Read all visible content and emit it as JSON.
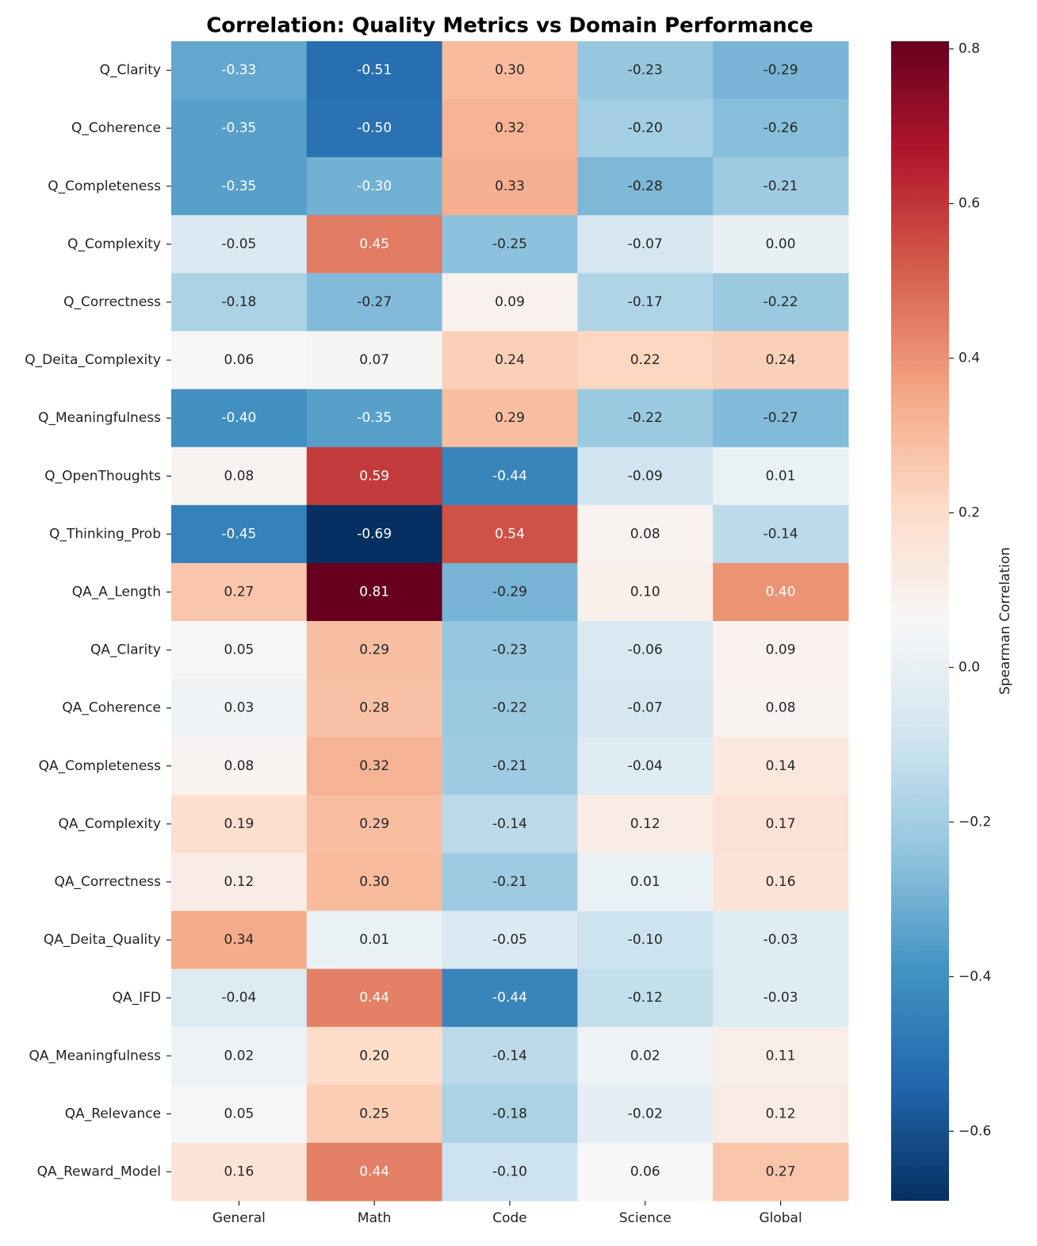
{
  "chart_data": {
    "type": "heatmap",
    "title": "Correlation: Quality Metrics vs Domain Performance",
    "categories": [
      "General",
      "Math",
      "Code",
      "Science",
      "Global"
    ],
    "rows": [
      "Q_Clarity",
      "Q_Coherence",
      "Q_Completeness",
      "Q_Complexity",
      "Q_Correctness",
      "Q_Deita_Complexity",
      "Q_Meaningfulness",
      "Q_OpenThoughts",
      "Q_Thinking_Prob",
      "QA_A_Length",
      "QA_Clarity",
      "QA_Coherence",
      "QA_Completeness",
      "QA_Complexity",
      "QA_Correctness",
      "QA_Deita_Quality",
      "QA_IFD",
      "QA_Meaningfulness",
      "QA_Relevance",
      "QA_Reward_Model"
    ],
    "values": [
      [
        -0.33,
        -0.51,
        0.3,
        -0.23,
        -0.29
      ],
      [
        -0.35,
        -0.5,
        0.32,
        -0.2,
        -0.26
      ],
      [
        -0.35,
        -0.3,
        0.33,
        -0.28,
        -0.21
      ],
      [
        -0.05,
        0.45,
        -0.25,
        -0.07,
        0.0
      ],
      [
        -0.18,
        -0.27,
        0.09,
        -0.17,
        -0.22
      ],
      [
        0.06,
        0.07,
        0.24,
        0.22,
        0.24
      ],
      [
        -0.4,
        -0.35,
        0.29,
        -0.22,
        -0.27
      ],
      [
        0.08,
        0.59,
        -0.44,
        -0.09,
        0.01
      ],
      [
        -0.45,
        -0.69,
        0.54,
        0.08,
        -0.14
      ],
      [
        0.27,
        0.81,
        -0.29,
        0.1,
        0.4
      ],
      [
        0.05,
        0.29,
        -0.23,
        -0.06,
        0.09
      ],
      [
        0.03,
        0.28,
        -0.22,
        -0.07,
        0.08
      ],
      [
        0.08,
        0.32,
        -0.21,
        -0.04,
        0.14
      ],
      [
        0.19,
        0.29,
        -0.14,
        0.12,
        0.17
      ],
      [
        0.12,
        0.3,
        -0.21,
        0.01,
        0.16
      ],
      [
        0.34,
        0.01,
        -0.05,
        -0.1,
        -0.03
      ],
      [
        -0.04,
        0.44,
        -0.44,
        -0.12,
        -0.03
      ],
      [
        0.02,
        0.2,
        -0.14,
        0.02,
        0.11
      ],
      [
        0.05,
        0.25,
        -0.18,
        -0.02,
        0.12
      ],
      [
        0.16,
        0.44,
        -0.1,
        0.06,
        0.27
      ]
    ],
    "value_labels": [
      [
        "-0.33",
        "-0.51",
        "0.30",
        "-0.23",
        "-0.29"
      ],
      [
        "-0.35",
        "-0.50",
        "0.32",
        "-0.20",
        "-0.26"
      ],
      [
        "-0.35",
        "-0.30",
        "0.33",
        "-0.28",
        "-0.21"
      ],
      [
        "-0.05",
        "0.45",
        "-0.25",
        "-0.07",
        "0.00"
      ],
      [
        "-0.18",
        "-0.27",
        "0.09",
        "-0.17",
        "-0.22"
      ],
      [
        "0.06",
        "0.07",
        "0.24",
        "0.22",
        "0.24"
      ],
      [
        "-0.40",
        "-0.35",
        "0.29",
        "-0.22",
        "-0.27"
      ],
      [
        "0.08",
        "0.59",
        "-0.44",
        "-0.09",
        "0.01"
      ],
      [
        "-0.45",
        "-0.69",
        "0.54",
        "0.08",
        "-0.14"
      ],
      [
        "0.27",
        "0.81",
        "-0.29",
        "0.10",
        "0.40"
      ],
      [
        "0.05",
        "0.29",
        "-0.23",
        "-0.06",
        "0.09"
      ],
      [
        "0.03",
        "0.28",
        "-0.22",
        "-0.07",
        "0.08"
      ],
      [
        "0.08",
        "0.32",
        "-0.21",
        "-0.04",
        "0.14"
      ],
      [
        "0.19",
        "0.29",
        "-0.14",
        "0.12",
        "0.17"
      ],
      [
        "0.12",
        "0.30",
        "-0.21",
        "0.01",
        "0.16"
      ],
      [
        "0.34",
        "0.01",
        "-0.05",
        "-0.10",
        "-0.03"
      ],
      [
        "-0.04",
        "0.44",
        "-0.44",
        "-0.12",
        "-0.03"
      ],
      [
        "0.02",
        "0.20",
        "-0.14",
        "0.02",
        "0.11"
      ],
      [
        "0.05",
        "0.25",
        "-0.18",
        "-0.02",
        "0.12"
      ],
      [
        "0.16",
        "0.44",
        "-0.10",
        "0.06",
        "0.27"
      ]
    ],
    "colormap": [
      "#053061",
      "#2166ac",
      "#4393c3",
      "#92c5de",
      "#d1e5f0",
      "#f7f7f7",
      "#fddbc7",
      "#f4a582",
      "#d6604d",
      "#b2182b",
      "#67001f"
    ],
    "colorbar_label": "Spearman Correlation",
    "clim": [
      -0.69,
      0.81
    ],
    "cticks": [
      {
        "value": -0.6,
        "label": "−0.6"
      },
      {
        "value": -0.4,
        "label": "−0.4"
      },
      {
        "value": -0.2,
        "label": "−0.2"
      },
      {
        "value": 0,
        "label": "0.0"
      },
      0.2,
      0.4,
      0.6,
      0.8
    ]
  }
}
